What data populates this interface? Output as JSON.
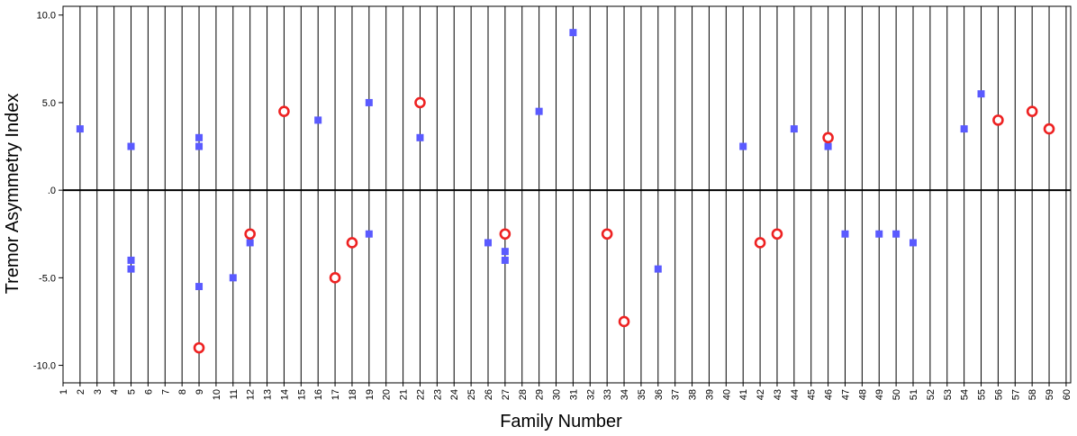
{
  "chart_data": {
    "type": "scatter",
    "xlabel": "Family Number",
    "ylabel": "Tremor Asymmetry Index",
    "x_categories": [
      "1",
      "2",
      "3",
      "4",
      "5",
      "6",
      "7",
      "8",
      "9",
      "10",
      "11",
      "12",
      "13",
      "14",
      "15",
      "16",
      "17",
      "18",
      "19",
      "20",
      "21",
      "22",
      "23",
      "24",
      "25",
      "26",
      "27",
      "28",
      "29",
      "30",
      "31",
      "32",
      "33",
      "34",
      "35",
      "36",
      "37",
      "38",
      "39",
      "40",
      "41",
      "42",
      "43",
      "44",
      "45",
      "46",
      "47",
      "48",
      "49",
      "50",
      "51",
      "52",
      "53",
      "54",
      "55",
      "56",
      "57",
      "58",
      "59",
      "60"
    ],
    "ylim": [
      -11.0,
      10.5
    ],
    "y_ticks": [
      10.0,
      5.0,
      0.0,
      -5.0,
      -10.0
    ],
    "y_tick_labels": [
      "10.0",
      "5.0",
      ".0",
      "-5.0",
      "-10.0"
    ],
    "grid": "vertical lines at each family number",
    "reference_line": 0,
    "colors": {
      "square": "#5a5aff",
      "circle": "#ee2222"
    },
    "series": [
      {
        "marker": "square",
        "points": [
          [
            2,
            3.5
          ],
          [
            5,
            2.5
          ],
          [
            5,
            -4.0
          ],
          [
            5,
            -4.5
          ],
          [
            9,
            3.0
          ],
          [
            9,
            2.5
          ],
          [
            9,
            -5.5
          ],
          [
            11,
            -5.0
          ],
          [
            12,
            -3.0
          ],
          [
            16,
            4.0
          ],
          [
            17,
            -5.0
          ],
          [
            19,
            5.0
          ],
          [
            19,
            -2.5
          ],
          [
            22,
            3.0
          ],
          [
            26,
            -3.0
          ],
          [
            27,
            -3.5
          ],
          [
            27,
            -4.0
          ],
          [
            29,
            4.5
          ],
          [
            31,
            9.0
          ],
          [
            36,
            -4.5
          ],
          [
            41,
            2.5
          ],
          [
            44,
            3.5
          ],
          [
            46,
            2.5
          ],
          [
            47,
            -2.5
          ],
          [
            49,
            -2.5
          ],
          [
            50,
            -2.5
          ],
          [
            51,
            -3.0
          ],
          [
            54,
            3.5
          ],
          [
            55,
            5.5
          ]
        ]
      },
      {
        "marker": "circle",
        "points": [
          [
            9,
            -9.0
          ],
          [
            12,
            -2.5
          ],
          [
            14,
            4.5
          ],
          [
            17,
            -5.0
          ],
          [
            18,
            -3.0
          ],
          [
            22,
            5.0
          ],
          [
            27,
            -2.5
          ],
          [
            33,
            -2.5
          ],
          [
            34,
            -7.5
          ],
          [
            42,
            -3.0
          ],
          [
            43,
            -2.5
          ],
          [
            46,
            3.0
          ],
          [
            56,
            4.0
          ],
          [
            58,
            4.5
          ],
          [
            59,
            3.5
          ]
        ]
      }
    ]
  }
}
